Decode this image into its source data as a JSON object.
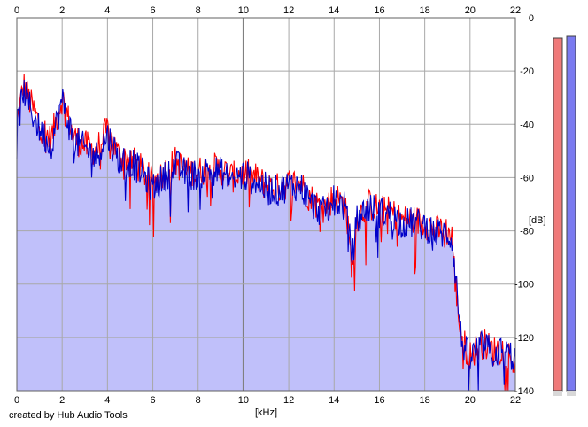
{
  "footer": {
    "credit": "created by Hub Audio Tools"
  },
  "colors": {
    "background": "#ffffff",
    "plot_fill": "#c0c0fa",
    "grid": "#a8a8a8",
    "grid_major": "#808080",
    "channel_left": "#ff0000",
    "channel_right": "#0000c8",
    "meter_left": "#f07a7a",
    "meter_right": "#7a7af0"
  },
  "chart_data": {
    "type": "line",
    "title": "",
    "xlabel": "[kHz]",
    "ylabel": "[dB]",
    "xlim": [
      0,
      22
    ],
    "ylim": [
      -140,
      0
    ],
    "x_ticks": [
      "0",
      "2",
      "4",
      "6",
      "8",
      "10",
      "12",
      "14",
      "16",
      "18",
      "20",
      "22"
    ],
    "x_tick_values": [
      0,
      2,
      4,
      6,
      8,
      10,
      12,
      14,
      16,
      18,
      20,
      22
    ],
    "y_ticks": [
      "0",
      "-20",
      "-40",
      "-60",
      "-80",
      "-100",
      "-120",
      "-140"
    ],
    "y_tick_values": [
      0,
      -20,
      -40,
      -60,
      -80,
      -100,
      -120,
      -140
    ],
    "grid": true,
    "legend": "none",
    "series": [
      {
        "color": "#ff0000",
        "x": [
          0,
          0.3,
          0.6,
          1.0,
          1.5,
          2.0,
          2.5,
          3.0,
          3.5,
          4.0,
          4.5,
          5.0,
          5.5,
          6.0,
          6.5,
          7.0,
          7.5,
          8.0,
          8.5,
          9.0,
          9.5,
          10.0,
          10.5,
          11.0,
          11.5,
          12.0,
          12.5,
          13.0,
          13.5,
          14.0,
          14.5,
          14.8,
          15.0,
          15.5,
          16.0,
          16.5,
          17.0,
          17.5,
          18.0,
          18.5,
          19.0,
          19.2,
          19.4,
          19.6,
          19.8,
          20.0,
          20.3,
          20.6,
          21.0,
          21.5,
          22.0
        ],
        "y": [
          -40,
          -25,
          -32,
          -40,
          -46,
          -30,
          -45,
          -48,
          -50,
          -42,
          -52,
          -53,
          -57,
          -62,
          -58,
          -54,
          -58,
          -58,
          -56,
          -57,
          -60,
          -58,
          -60,
          -63,
          -64,
          -62,
          -62,
          -68,
          -72,
          -67,
          -70,
          -95,
          -75,
          -70,
          -72,
          -73,
          -76,
          -76,
          -77,
          -80,
          -80,
          -82,
          -105,
          -118,
          -124,
          -127,
          -124,
          -122,
          -125,
          -124,
          -130
        ]
      },
      {
        "color": "#0000c8",
        "x": [
          0,
          0.3,
          0.6,
          1.0,
          1.5,
          2.0,
          2.5,
          3.0,
          3.5,
          4.0,
          4.5,
          5.0,
          5.5,
          6.0,
          6.5,
          7.0,
          7.5,
          8.0,
          8.5,
          9.0,
          9.5,
          10.0,
          10.5,
          11.0,
          11.5,
          12.0,
          12.5,
          13.0,
          13.5,
          14.0,
          14.5,
          14.8,
          15.0,
          15.5,
          16.0,
          16.5,
          17.0,
          17.5,
          18.0,
          18.5,
          19.0,
          19.2,
          19.4,
          19.6,
          19.8,
          20.0,
          20.3,
          20.6,
          21.0,
          21.5,
          22.0
        ],
        "y": [
          -42,
          -27,
          -34,
          -42,
          -48,
          -31,
          -46,
          -49,
          -52,
          -44,
          -53,
          -54,
          -58,
          -64,
          -60,
          -55,
          -59,
          -59,
          -57,
          -58,
          -61,
          -59,
          -61,
          -64,
          -65,
          -63,
          -63,
          -70,
          -73,
          -68,
          -71,
          -90,
          -76,
          -71,
          -73,
          -74,
          -77,
          -77,
          -78,
          -81,
          -81,
          -83,
          -100,
          -120,
          -125,
          -128,
          -125,
          -123,
          -126,
          -125,
          -128
        ]
      }
    ]
  }
}
